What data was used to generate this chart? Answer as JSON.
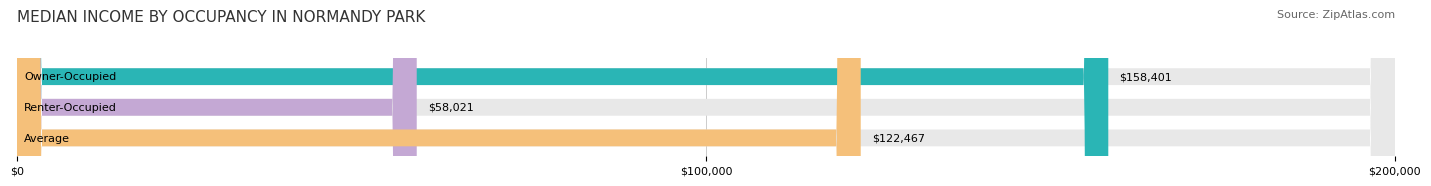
{
  "title": "MEDIAN INCOME BY OCCUPANCY IN NORMANDY PARK",
  "source": "Source: ZipAtlas.com",
  "categories": [
    "Owner-Occupied",
    "Renter-Occupied",
    "Average"
  ],
  "values": [
    158401,
    58021,
    122467
  ],
  "labels": [
    "$158,401",
    "$58,021",
    "$122,467"
  ],
  "bar_colors": [
    "#2ab5b5",
    "#c4a8d4",
    "#f5c07a"
  ],
  "bar_bg_color": "#e8e8e8",
  "background_color": "#ffffff",
  "xlim": [
    0,
    200000
  ],
  "xtick_labels": [
    "$0",
    "$100,000",
    "$200,000"
  ],
  "title_fontsize": 11,
  "source_fontsize": 8,
  "label_fontsize": 8,
  "bar_height": 0.55
}
